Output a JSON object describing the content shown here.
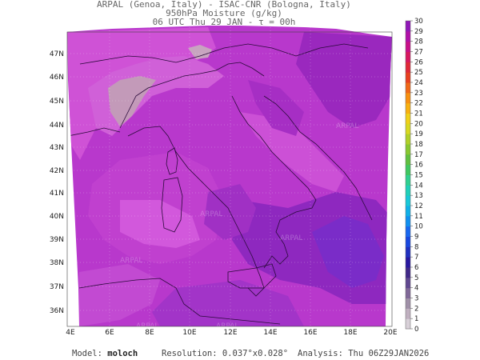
{
  "header": {
    "line1": "ARPAL (Genoa, Italy)  -  ISAC-CNR (Bologna, Italy)",
    "line2": "950hPa Moisture (g/kg)",
    "line3": "06 UTC Thu 29 JAN  -  τ = 00h"
  },
  "axes": {
    "lat_labels": [
      "47N",
      "46N",
      "45N",
      "44N",
      "43N",
      "42N",
      "41N",
      "40N",
      "39N",
      "38N",
      "37N",
      "36N"
    ],
    "lon_labels": [
      "4E",
      "6E",
      "8E",
      "10E",
      "12E",
      "14E",
      "16E",
      "18E",
      "20E"
    ]
  },
  "colorbar": {
    "ticks": [
      0,
      1,
      2,
      3,
      4,
      5,
      6,
      7,
      8,
      9,
      10,
      11,
      12,
      13,
      14,
      15,
      16,
      17,
      18,
      19,
      20,
      21,
      22,
      23,
      24,
      25,
      26,
      27,
      28,
      29,
      30
    ],
    "colors": [
      "#f2f2f2",
      "#d8d0d8",
      "#c0b0c0",
      "#a090a8",
      "#806898",
      "#604890",
      "#402888",
      "#2818a0",
      "#2030c0",
      "#1848e0",
      "#1868f0",
      "#1090f0",
      "#10b0e8",
      "#18c8d8",
      "#20d0b8",
      "#30d090",
      "#40c860",
      "#60c040",
      "#88c830",
      "#b0d028",
      "#d8d820",
      "#f0d018",
      "#f8b010",
      "#f89010",
      "#f06818",
      "#e84020",
      "#e02838",
      "#d81860",
      "#c81088",
      "#b010a8",
      "#9018b8"
    ],
    "map_palette": {
      "high": "#8a22b8",
      "mid": "#b030c8",
      "low": "#d050d8",
      "lowest": "#c8a0b8"
    }
  },
  "watermark": "ARPAL",
  "footer": {
    "model_label": "Model:",
    "model_value": "moloch",
    "resolution": "Resolution: 0.037°x0.028°",
    "analysis": "Analysis: Thu 06Z29JAN2026"
  }
}
